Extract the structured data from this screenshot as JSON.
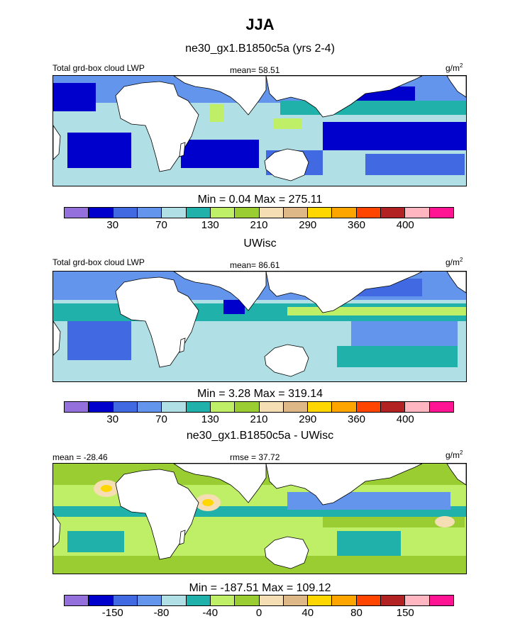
{
  "figure": {
    "title": "JJA",
    "units_base": "g/m",
    "units_exp": "2"
  },
  "colors": [
    "#9370DB",
    "#0000CD",
    "#4169E1",
    "#6495ED",
    "#B0E0E6",
    "#20B2AA",
    "#BFEF66",
    "#9ACD32",
    "#F5DEB3",
    "#DEB887",
    "#FFD700",
    "#FFA500",
    "#FF4500",
    "#B22222",
    "#FFB6C1",
    "#FF1493"
  ],
  "chart_data": [
    {
      "type": "heatmap",
      "title": "ne30_gx1.B1850c5a (yrs 2-4)",
      "left_label": "Total grd-box cloud LWP",
      "stat_text": "mean=  58.51",
      "minmax_text": "Min =   0.04 Max = 275.11",
      "colorbar_labels": [
        "30",
        "70",
        "130",
        "210",
        "290",
        "360",
        "400"
      ],
      "stats": {
        "mean": 58.51,
        "min": 0.04,
        "max": 275.11
      }
    },
    {
      "type": "heatmap",
      "title": "UWisc",
      "left_label": "Total grd-box cloud LWP",
      "stat_text": "mean=  86.61",
      "minmax_text": "Min =   3.28 Max = 319.14",
      "colorbar_labels": [
        "30",
        "70",
        "130",
        "210",
        "290",
        "360",
        "400"
      ],
      "stats": {
        "mean": 86.61,
        "min": 3.28,
        "max": 319.14
      }
    },
    {
      "type": "heatmap",
      "title": "ne30_gx1.B1850c5a - UWisc",
      "left_label": "mean = -28.46",
      "stat_text": "rmse =  37.72",
      "minmax_text": "Min = -187.51 Max = 109.12",
      "colorbar_labels": [
        "-150",
        "-80",
        "-40",
        "0",
        "40",
        "80",
        "150"
      ],
      "stats": {
        "mean": -28.46,
        "rmse": 37.72,
        "min": -187.51,
        "max": 109.12
      }
    }
  ]
}
